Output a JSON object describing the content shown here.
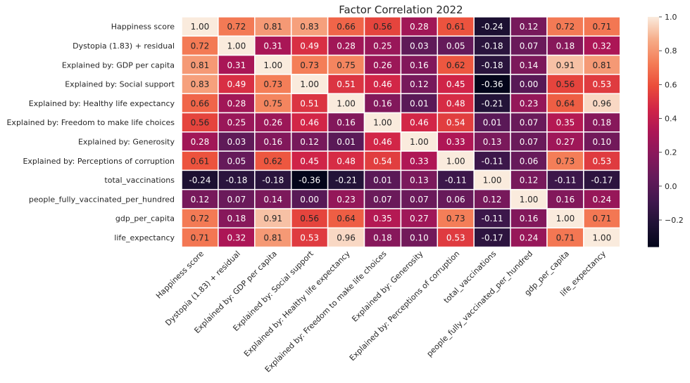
{
  "chart_data": {
    "type": "heatmap",
    "title": "Factor Correlation 2022",
    "labels": [
      "Happiness score",
      "Dystopia (1.83) + residual",
      "Explained by: GDP per capita",
      "Explained by: Social support",
      "Explained by: Healthy life expectancy",
      "Explained by: Freedom to make life choices",
      "Explained by: Generosity",
      "Explained by: Perceptions of corruption",
      "total_vaccinations",
      "people_fully_vaccinated_per_hundred",
      "gdp_per_capita",
      "life_expectancy"
    ],
    "values": [
      [
        1.0,
        0.72,
        0.81,
        0.83,
        0.66,
        0.56,
        0.28,
        0.61,
        -0.24,
        0.12,
        0.72,
        0.71
      ],
      [
        0.72,
        1.0,
        0.31,
        0.49,
        0.28,
        0.25,
        0.03,
        0.05,
        -0.18,
        0.07,
        0.18,
        0.32
      ],
      [
        0.81,
        0.31,
        1.0,
        0.73,
        0.75,
        0.26,
        0.16,
        0.62,
        -0.18,
        0.14,
        0.91,
        0.81
      ],
      [
        0.83,
        0.49,
        0.73,
        1.0,
        0.51,
        0.46,
        0.12,
        0.45,
        -0.36,
        0.0,
        0.56,
        0.53
      ],
      [
        0.66,
        0.28,
        0.75,
        0.51,
        1.0,
        0.16,
        0.01,
        0.48,
        -0.21,
        0.23,
        0.64,
        0.96
      ],
      [
        0.56,
        0.25,
        0.26,
        0.46,
        0.16,
        1.0,
        0.46,
        0.54,
        0.01,
        0.07,
        0.35,
        0.18
      ],
      [
        0.28,
        0.03,
        0.16,
        0.12,
        0.01,
        0.46,
        1.0,
        0.33,
        0.13,
        0.07,
        0.27,
        0.1
      ],
      [
        0.61,
        0.05,
        0.62,
        0.45,
        0.48,
        0.54,
        0.33,
        1.0,
        -0.11,
        0.06,
        0.73,
        0.53
      ],
      [
        -0.24,
        -0.18,
        -0.18,
        -0.36,
        -0.21,
        0.01,
        0.13,
        -0.11,
        1.0,
        0.12,
        -0.11,
        -0.17
      ],
      [
        0.12,
        0.07,
        0.14,
        0.0,
        0.23,
        0.07,
        0.07,
        0.06,
        0.12,
        1.0,
        0.16,
        0.24
      ],
      [
        0.72,
        0.18,
        0.91,
        0.56,
        0.64,
        0.35,
        0.27,
        0.73,
        -0.11,
        0.16,
        1.0,
        0.71
      ],
      [
        0.71,
        0.32,
        0.81,
        0.53,
        0.96,
        0.18,
        0.1,
        0.53,
        -0.17,
        0.24,
        0.71,
        1.0
      ]
    ],
    "value_format": "2 decimals",
    "colormap": "rocket",
    "color_range": [
      -0.36,
      1.0
    ],
    "colorbar_ticks": [
      "1.0",
      "0.8",
      "0.6",
      "0.4",
      "0.2",
      "0.0",
      "−0.2"
    ],
    "colorbar_tick_values": [
      1.0,
      0.8,
      0.6,
      0.4,
      0.2,
      0.0,
      -0.2
    ],
    "cell_border_color": "#ffffff",
    "grid": false
  }
}
